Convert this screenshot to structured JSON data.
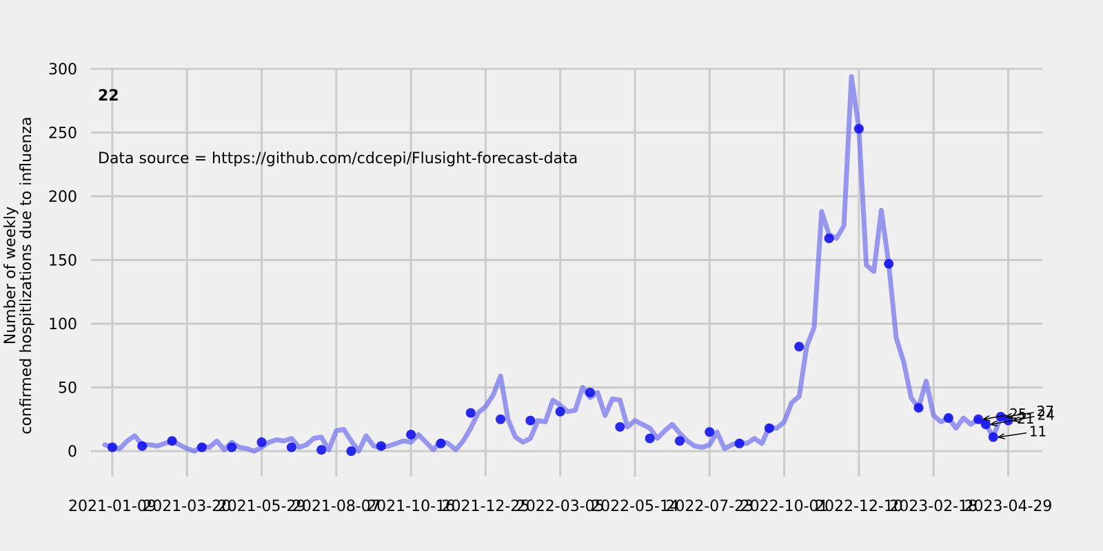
{
  "chart_data": {
    "type": "line",
    "panel_label": "22",
    "source_note": "Data source = https://github.com/cdcepi/Flusight-forecast-data",
    "xlabel": "",
    "ylabel_lines": [
      "Number of weekly",
      "confirmed hospitlizations due to influenza"
    ],
    "ylim": [
      -20,
      300
    ],
    "yticks": [
      0,
      50,
      100,
      150,
      200,
      250,
      300
    ],
    "xlim": [
      "2020-12-20",
      "2023-05-31"
    ],
    "xticks": [
      "2021-01-09",
      "2021-03-20",
      "2021-05-29",
      "2021-08-07",
      "2021-10-16",
      "2021-12-25",
      "2022-03-05",
      "2022-05-14",
      "2022-07-23",
      "2022-10-01",
      "2022-12-10",
      "2023-02-18",
      "2023-04-29"
    ],
    "grid": true,
    "colors": {
      "line": "#6f6ff0",
      "points": "#1212ee",
      "background": "#f0f0f0",
      "grid": "#cbcbcb"
    },
    "series": [
      {
        "style": "line",
        "x": [
          "2021-01-02",
          "2021-01-09",
          "2021-01-16",
          "2021-01-23",
          "2021-01-30",
          "2021-02-06",
          "2021-02-13",
          "2021-02-20",
          "2021-02-27",
          "2021-03-06",
          "2021-03-13",
          "2021-03-20",
          "2021-03-27",
          "2021-04-03",
          "2021-04-10",
          "2021-04-17",
          "2021-04-24",
          "2021-05-01",
          "2021-05-08",
          "2021-05-15",
          "2021-05-22",
          "2021-05-29",
          "2021-06-05",
          "2021-06-12",
          "2021-06-19",
          "2021-06-26",
          "2021-07-03",
          "2021-07-10",
          "2021-07-17",
          "2021-07-24",
          "2021-07-31",
          "2021-08-07",
          "2021-08-14",
          "2021-08-21",
          "2021-08-28",
          "2021-09-04",
          "2021-09-11",
          "2021-09-18",
          "2021-09-25",
          "2021-10-02",
          "2021-10-09",
          "2021-10-16",
          "2021-10-23",
          "2021-10-30",
          "2021-11-06",
          "2021-11-13",
          "2021-11-20",
          "2021-11-27",
          "2021-12-04",
          "2021-12-11",
          "2021-12-18",
          "2021-12-25",
          "2022-01-01",
          "2022-01-08",
          "2022-01-15",
          "2022-01-22",
          "2022-01-29",
          "2022-02-05",
          "2022-02-12",
          "2022-02-19",
          "2022-02-26",
          "2022-03-05",
          "2022-03-12",
          "2022-03-19",
          "2022-03-26",
          "2022-04-02",
          "2022-04-09",
          "2022-04-16",
          "2022-04-23",
          "2022-04-30",
          "2022-05-07",
          "2022-05-14",
          "2022-05-21",
          "2022-05-28",
          "2022-06-04",
          "2022-06-11",
          "2022-06-18",
          "2022-06-25",
          "2022-07-02",
          "2022-07-09",
          "2022-07-16",
          "2022-07-23",
          "2022-07-30",
          "2022-08-06",
          "2022-08-13",
          "2022-08-20",
          "2022-08-27",
          "2022-09-03",
          "2022-09-10",
          "2022-09-17",
          "2022-09-24",
          "2022-10-01",
          "2022-10-08",
          "2022-10-15",
          "2022-10-22",
          "2022-10-29",
          "2022-11-05",
          "2022-11-12",
          "2022-11-19",
          "2022-11-26",
          "2022-12-03",
          "2022-12-10",
          "2022-12-17",
          "2022-12-24",
          "2022-12-31",
          "2023-01-07",
          "2023-01-14",
          "2023-01-21",
          "2023-01-28",
          "2023-02-04",
          "2023-02-11",
          "2023-02-18",
          "2023-02-25",
          "2023-03-04",
          "2023-03-11",
          "2023-03-18",
          "2023-03-25",
          "2023-04-01",
          "2023-04-08",
          "2023-04-15",
          "2023-04-22",
          "2023-04-29"
        ],
        "y": [
          5,
          3,
          2,
          8,
          12,
          5,
          5,
          4,
          6,
          8,
          5,
          2,
          0,
          4,
          3,
          8,
          1,
          7,
          3,
          2,
          0,
          3,
          7,
          9,
          8,
          10,
          3,
          5,
          10,
          11,
          1,
          16,
          17,
          8,
          0,
          12,
          4,
          3,
          4,
          6,
          8,
          7,
          13,
          7,
          1,
          8,
          6,
          1,
          8,
          18,
          30,
          35,
          44,
          59,
          25,
          11,
          7,
          10,
          24,
          23,
          40,
          36,
          31,
          32,
          50,
          42,
          46,
          28,
          41,
          40,
          19,
          24,
          21,
          18,
          10,
          16,
          21,
          14,
          8,
          4,
          3,
          5,
          15,
          2,
          5,
          7,
          6,
          10,
          6,
          19,
          18,
          23,
          38,
          43,
          82,
          97,
          188,
          170,
          167,
          177,
          294,
          253,
          146,
          141,
          189,
          147,
          89,
          70,
          42,
          34,
          55,
          28,
          23,
          26,
          18,
          26,
          21,
          25,
          21,
          11,
          27,
          24
        ]
      },
      {
        "style": "points",
        "x": [
          "2021-01-09",
          "2021-02-06",
          "2021-03-06",
          "2021-04-03",
          "2021-05-01",
          "2021-05-29",
          "2021-06-26",
          "2021-07-24",
          "2021-08-21",
          "2021-09-18",
          "2021-10-16",
          "2021-11-13",
          "2021-12-11",
          "2022-01-08",
          "2022-02-05",
          "2022-03-05",
          "2022-04-02",
          "2022-04-30",
          "2022-05-28",
          "2022-06-25",
          "2022-07-23",
          "2022-08-20",
          "2022-09-17",
          "2022-10-15",
          "2022-11-12",
          "2022-12-10",
          "2023-01-07",
          "2023-02-04",
          "2023-03-04",
          "2023-04-01",
          "2023-04-08",
          "2023-04-15",
          "2023-04-22",
          "2023-04-29"
        ],
        "y": [
          3,
          4,
          8,
          3,
          3,
          7,
          3,
          1,
          0,
          4,
          13,
          6,
          30,
          25,
          24,
          31,
          46,
          19,
          10,
          8,
          15,
          6,
          18,
          82,
          167,
          253,
          147,
          34,
          26,
          25,
          21,
          11,
          27,
          24
        ]
      }
    ],
    "annotations": [
      {
        "text": "25",
        "x": "2023-04-01",
        "y": 25
      },
      {
        "text": "21",
        "x": "2023-04-08",
        "y": 21
      },
      {
        "text": "11",
        "x": "2023-04-15",
        "y": 11
      },
      {
        "text": "27",
        "x": "2023-04-22",
        "y": 27
      },
      {
        "text": "24",
        "x": "2023-04-29",
        "y": 24
      }
    ]
  }
}
